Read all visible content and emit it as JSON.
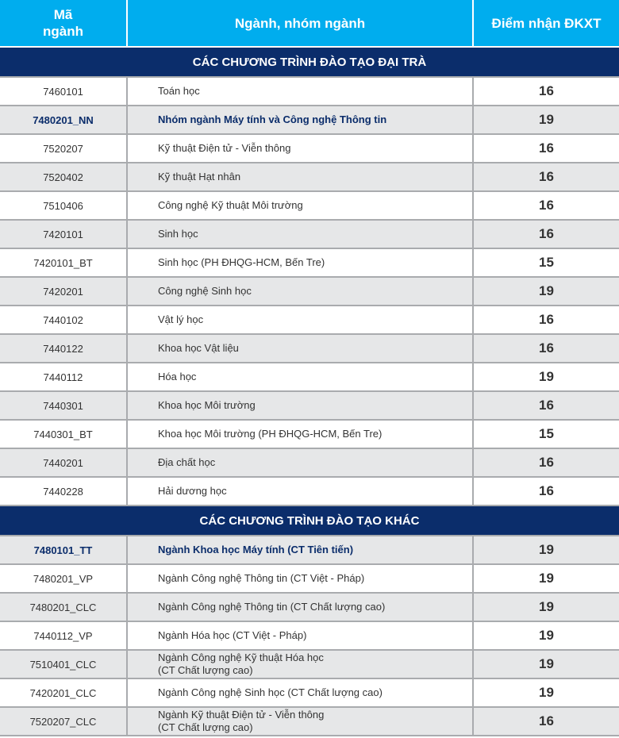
{
  "header": {
    "code": "Mã ngành",
    "name": "Ngành, nhóm ngành",
    "score": "Điểm nhận ĐKXT"
  },
  "colors": {
    "header_bg": "#00adee",
    "section_bg": "#0b2d6b",
    "row_alt": "#e6e7e8",
    "highlight_text": "#0b2d6b"
  },
  "sections": [
    {
      "title": "CÁC CHƯƠNG TRÌNH ĐÀO TẠO ĐẠI TRÀ",
      "first_gray": false,
      "rows": [
        {
          "code": "7460101",
          "name": "Toán học",
          "score": "16"
        },
        {
          "code": "7480201_NN",
          "name": "Nhóm ngành Máy tính và Công nghệ Thông tin",
          "score": "19",
          "highlight": true
        },
        {
          "code": "7520207",
          "name": "Kỹ thuật Điện tử - Viễn thông",
          "score": "16"
        },
        {
          "code": "7520402",
          "name": "Kỹ thuật Hạt nhân",
          "score": "16"
        },
        {
          "code": "7510406",
          "name": "Công nghệ Kỹ thuật Môi trường",
          "score": "16"
        },
        {
          "code": "7420101",
          "name": "Sinh học",
          "score": "16"
        },
        {
          "code": "7420101_BT",
          "name": "Sinh học (PH ĐHQG-HCM, Bến Tre)",
          "score": "15"
        },
        {
          "code": "7420201",
          "name": "Công nghệ Sinh học",
          "score": "19"
        },
        {
          "code": "7440102",
          "name": "Vật lý học",
          "score": "16"
        },
        {
          "code": "7440122",
          "name": "Khoa học Vật liệu",
          "score": "16"
        },
        {
          "code": "7440112",
          "name": "Hóa học",
          "score": "19"
        },
        {
          "code": "7440301",
          "name": "Khoa học Môi trường",
          "score": "16"
        },
        {
          "code": "7440301_BT",
          "name": "Khoa học Môi trường (PH ĐHQG-HCM, Bến Tre)",
          "score": "15"
        },
        {
          "code": "7440201",
          "name": "Địa chất học",
          "score": "16"
        },
        {
          "code": "7440228",
          "name": "Hải dương học",
          "score": "16"
        }
      ]
    },
    {
      "title": "CÁC CHƯƠNG TRÌNH ĐÀO TẠO KHÁC",
      "first_gray": true,
      "rows": [
        {
          "code": "7480101_TT",
          "name": "Ngành Khoa học Máy tính (CT Tiên tiến)",
          "score": "19",
          "highlight": true
        },
        {
          "code": "7480201_VP",
          "name": "Ngành Công nghệ Thông tin (CT Việt - Pháp)",
          "score": "19"
        },
        {
          "code": "7480201_CLC",
          "name": "Ngành Công nghệ Thông tin (CT Chất lượng cao)",
          "score": "19"
        },
        {
          "code": "7440112_VP",
          "name": "Ngành Hóa học (CT Việt - Pháp)",
          "score": "19"
        },
        {
          "code": "7510401_CLC",
          "name": "Ngành Công nghệ Kỹ thuật Hóa học\n(CT Chất lượng cao)",
          "score": "19"
        },
        {
          "code": "7420201_CLC",
          "name": "Ngành Công nghệ Sinh học (CT Chất lượng cao)",
          "score": "19"
        },
        {
          "code": "7520207_CLC",
          "name": "Ngành Kỹ thuật Điện tử - Viễn thông\n(CT Chất lượng cao)",
          "score": "16"
        }
      ]
    }
  ]
}
